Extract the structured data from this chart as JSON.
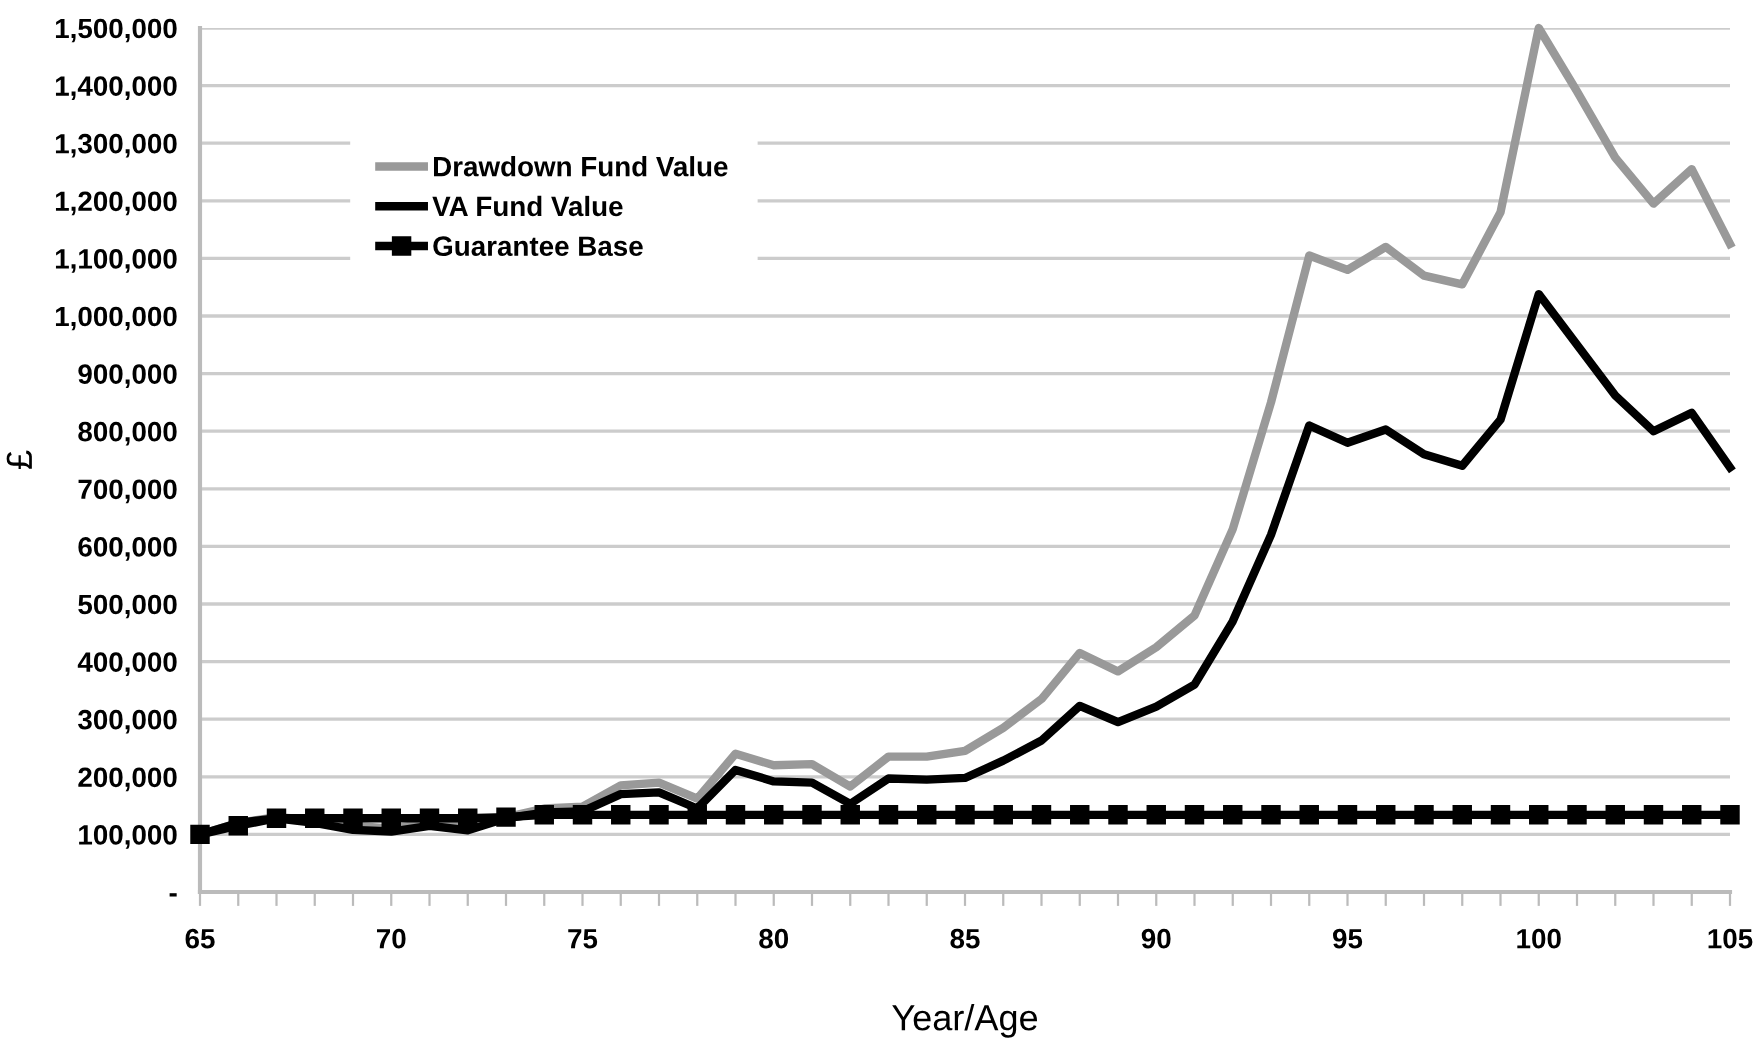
{
  "chart_data": {
    "type": "line",
    "xlabel": "Year/Age",
    "ylabel": "£",
    "x": [
      65,
      66,
      67,
      68,
      69,
      70,
      71,
      72,
      73,
      74,
      75,
      76,
      77,
      78,
      79,
      80,
      81,
      82,
      83,
      84,
      85,
      86,
      87,
      88,
      89,
      90,
      91,
      92,
      93,
      94,
      95,
      96,
      97,
      98,
      99,
      100,
      101,
      102,
      103,
      104,
      105
    ],
    "series": [
      {
        "name": "Drawdown Fund Value",
        "color": "#999999",
        "marker": "none",
        "values": [
          100000,
          120000,
          130000,
          125000,
          115000,
          110000,
          120000,
          112000,
          130000,
          145000,
          148000,
          185000,
          190000,
          162000,
          240000,
          220000,
          222000,
          183000,
          235000,
          235000,
          245000,
          285000,
          335000,
          415000,
          383000,
          425000,
          480000,
          630000,
          850000,
          1105000,
          1080000,
          1120000,
          1070000,
          1055000,
          1180000,
          1500000,
          1390000,
          1275000,
          1195000,
          1255000,
          1125000
        ]
      },
      {
        "name": "VA Fund Value",
        "color": "#000000",
        "marker": "none",
        "values": [
          100000,
          120000,
          128000,
          120000,
          108000,
          105000,
          115000,
          107000,
          128000,
          138000,
          140000,
          170000,
          173000,
          145000,
          212000,
          192000,
          190000,
          153000,
          197000,
          195000,
          198000,
          228000,
          263000,
          323000,
          295000,
          322000,
          360000,
          470000,
          620000,
          810000,
          780000,
          803000,
          760000,
          740000,
          820000,
          1038000,
          950000,
          862000,
          800000,
          832000,
          737000
        ]
      },
      {
        "name": "Guarantee Base",
        "color": "#000000",
        "marker": "square",
        "values": [
          100000,
          115000,
          128000,
          128000,
          128000,
          128000,
          128000,
          128000,
          130000,
          134000,
          134000,
          134000,
          134000,
          134000,
          134000,
          134000,
          134000,
          134000,
          134000,
          134000,
          134000,
          134000,
          134000,
          134000,
          134000,
          134000,
          134000,
          134000,
          134000,
          134000,
          134000,
          134000,
          134000,
          134000,
          134000,
          134000,
          134000,
          134000,
          134000,
          134000,
          134000
        ]
      }
    ],
    "xlim": [
      65,
      105
    ],
    "xticks": [
      65,
      {
        "value": 66,
        "label": null
      },
      {
        "value": 67,
        "label": null
      },
      {
        "value": 68,
        "label": null
      },
      {
        "value": 69,
        "label": null
      },
      70,
      {
        "value": 71,
        "label": null
      },
      {
        "value": 72,
        "label": null
      },
      {
        "value": 73,
        "label": null
      },
      {
        "value": 74,
        "label": null
      },
      75,
      {
        "value": 76,
        "label": null
      },
      {
        "value": 77,
        "label": null
      },
      {
        "value": 78,
        "label": null
      },
      {
        "value": 79,
        "label": null
      },
      80,
      {
        "value": 81,
        "label": null
      },
      {
        "value": 82,
        "label": null
      },
      {
        "value": 83,
        "label": null
      },
      {
        "value": 84,
        "label": null
      },
      85,
      {
        "value": 86,
        "label": null
      },
      {
        "value": 87,
        "label": null
      },
      {
        "value": 88,
        "label": null
      },
      {
        "value": 89,
        "label": null
      },
      90,
      {
        "value": 91,
        "label": null
      },
      {
        "value": 92,
        "label": null
      },
      {
        "value": 93,
        "label": null
      },
      {
        "value": 94,
        "label": null
      },
      95,
      {
        "value": 96,
        "label": null
      },
      {
        "value": 97,
        "label": null
      },
      {
        "value": 98,
        "label": null
      },
      {
        "value": 99,
        "label": null
      },
      100,
      {
        "value": 101,
        "label": null
      },
      {
        "value": 102,
        "label": null
      },
      {
        "value": 103,
        "label": null
      },
      {
        "value": 104,
        "label": null
      },
      105
    ],
    "ylim": [
      0,
      1500000
    ],
    "yticks": [
      {
        "value": 0,
        "label": "-"
      },
      {
        "value": 100000,
        "label": "100,000"
      },
      {
        "value": 200000,
        "label": "200,000"
      },
      {
        "value": 300000,
        "label": "300,000"
      },
      {
        "value": 400000,
        "label": "400,000"
      },
      {
        "value": 500000,
        "label": "500,000"
      },
      {
        "value": 600000,
        "label": "600,000"
      },
      {
        "value": 700000,
        "label": "700,000"
      },
      {
        "value": 800000,
        "label": "800,000"
      },
      {
        "value": 900000,
        "label": "900,000"
      },
      {
        "value": 1000000,
        "label": "1,000,000"
      },
      {
        "value": 1100000,
        "label": "1,100,000"
      },
      {
        "value": 1200000,
        "label": "1,200,000"
      },
      {
        "value": 1300000,
        "label": "1,300,000"
      },
      {
        "value": 1400000,
        "label": "1,400,000"
      },
      {
        "value": 1500000,
        "label": "1,500,000"
      }
    ],
    "grid": "y",
    "legend": "top left",
    "line_style": "solid"
  }
}
